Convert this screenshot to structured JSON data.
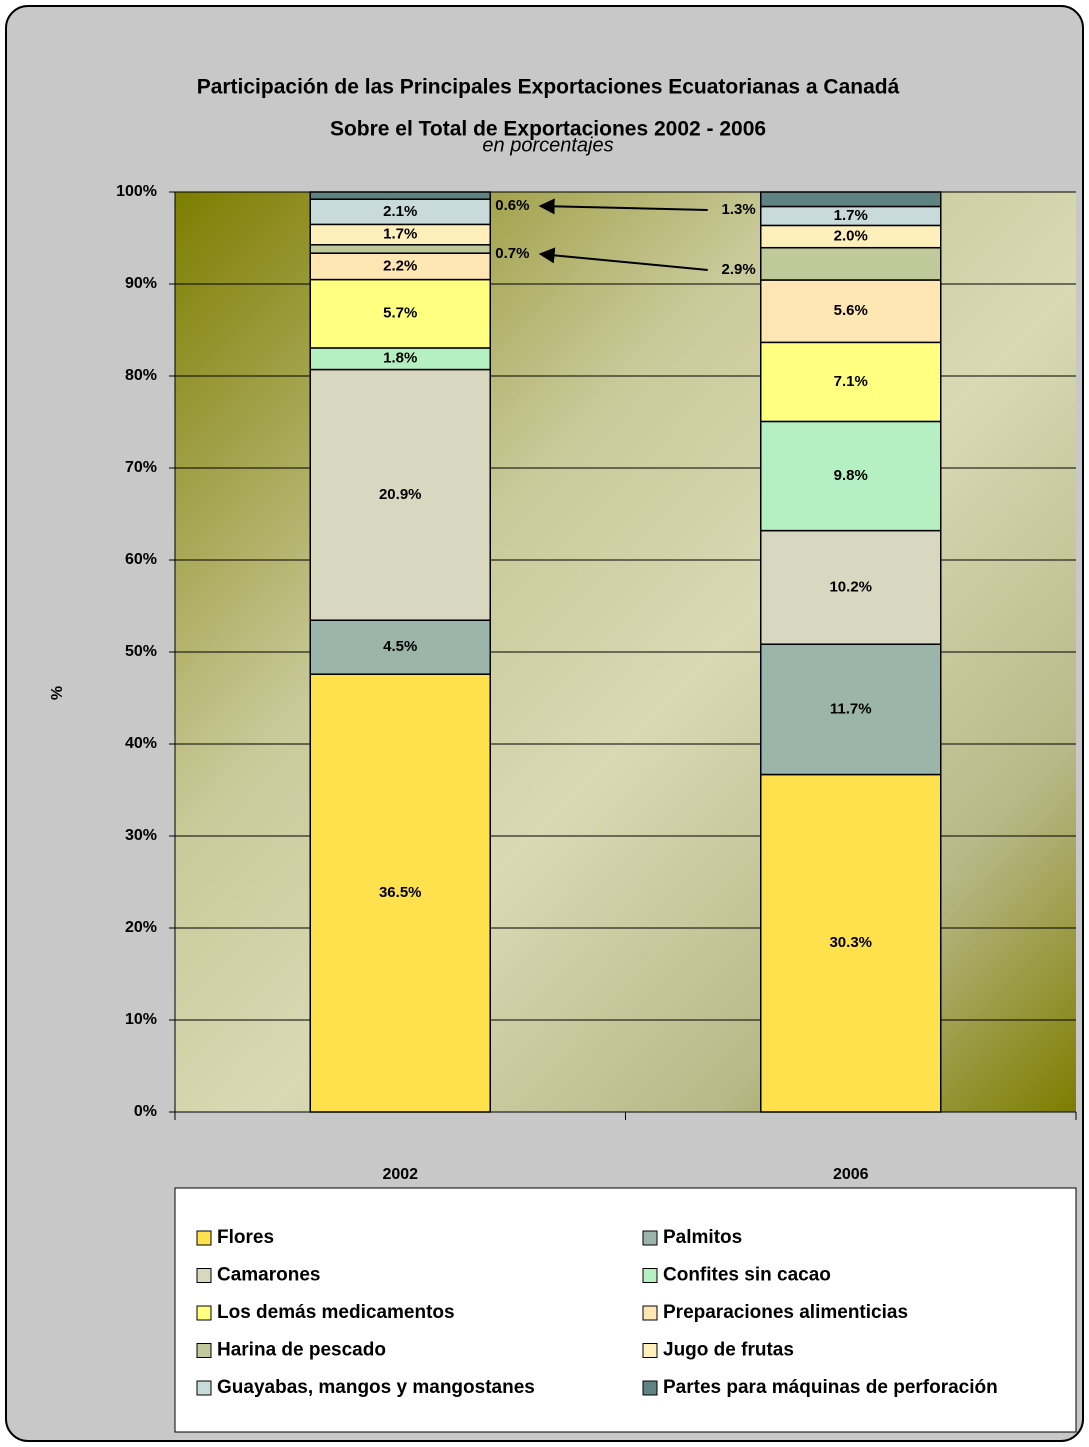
{
  "chart_data": {
    "type": "bar",
    "stacking": "percent",
    "title": "Participación de las Principales Exportaciones Ecuatorianas  a Canadá",
    "title2": "Sobre el Total de Exportaciones 2002 - 2006",
    "subtitle": "en porcentajes",
    "ylabel": "%",
    "categories": [
      "2002",
      "2006"
    ],
    "ylim": [
      0,
      100
    ],
    "yticks": [
      {
        "value": 0,
        "label": "0%"
      },
      {
        "value": 10,
        "label": "10%"
      },
      {
        "value": 20,
        "label": "20%"
      },
      {
        "value": 30,
        "label": "30%"
      },
      {
        "value": 40,
        "label": "40%"
      },
      {
        "value": 50,
        "label": "50%"
      },
      {
        "value": 60,
        "label": "60%"
      },
      {
        "value": 70,
        "label": "70%"
      },
      {
        "value": 80,
        "label": "80%"
      },
      {
        "value": 90,
        "label": "90%"
      },
      {
        "value": 100,
        "label": "100%"
      }
    ],
    "grid": true,
    "series": [
      {
        "name": "Flores",
        "color": "#ffe14d",
        "values": [
          36.5,
          30.3
        ],
        "value_labels": [
          "36.5%",
          "30.3%"
        ]
      },
      {
        "name": "Palmitos",
        "color": "#9bb5aa",
        "values": [
          4.5,
          11.7
        ],
        "value_labels": [
          "4.5%",
          "11.7%"
        ]
      },
      {
        "name": "Camarones",
        "color": "#d8d8c0",
        "values": [
          20.9,
          10.2
        ],
        "value_labels": [
          "20.9%",
          "10.2%"
        ]
      },
      {
        "name": "Confites sin cacao",
        "color": "#b5f0c2",
        "values": [
          1.8,
          9.8
        ],
        "value_labels": [
          "1.8%",
          "9.8%"
        ]
      },
      {
        "name": "Los demás medicamentos",
        "color": "#ffff80",
        "values": [
          5.7,
          7.1
        ],
        "value_labels": [
          "5.7%",
          "7.1%"
        ]
      },
      {
        "name": "Preparaciones alimenticias",
        "color": "#ffe6b3",
        "values": [
          2.2,
          5.6
        ],
        "value_labels": [
          "2.2%",
          "5.6%"
        ]
      },
      {
        "name": "Harina de pescado",
        "color": "#bfc99a",
        "values": [
          0.7,
          2.9
        ],
        "value_labels": [
          "0.7%",
          "2.9%"
        ]
      },
      {
        "name": "Jugo de frutas",
        "color": "#fff0bb",
        "values": [
          1.7,
          2.0
        ],
        "value_labels": [
          "1.7%",
          "2.0%"
        ]
      },
      {
        "name": "Guayabas, mangos y mangostanes",
        "color": "#c8dada",
        "values": [
          2.1,
          1.7
        ],
        "value_labels": [
          "2.1%",
          "1.7%"
        ]
      },
      {
        "name": "Partes para máquinas de perforación",
        "color": "#5f8282",
        "values": [
          0.6,
          1.3
        ],
        "value_labels": [
          "0.6%",
          "1.3%"
        ]
      }
    ]
  }
}
